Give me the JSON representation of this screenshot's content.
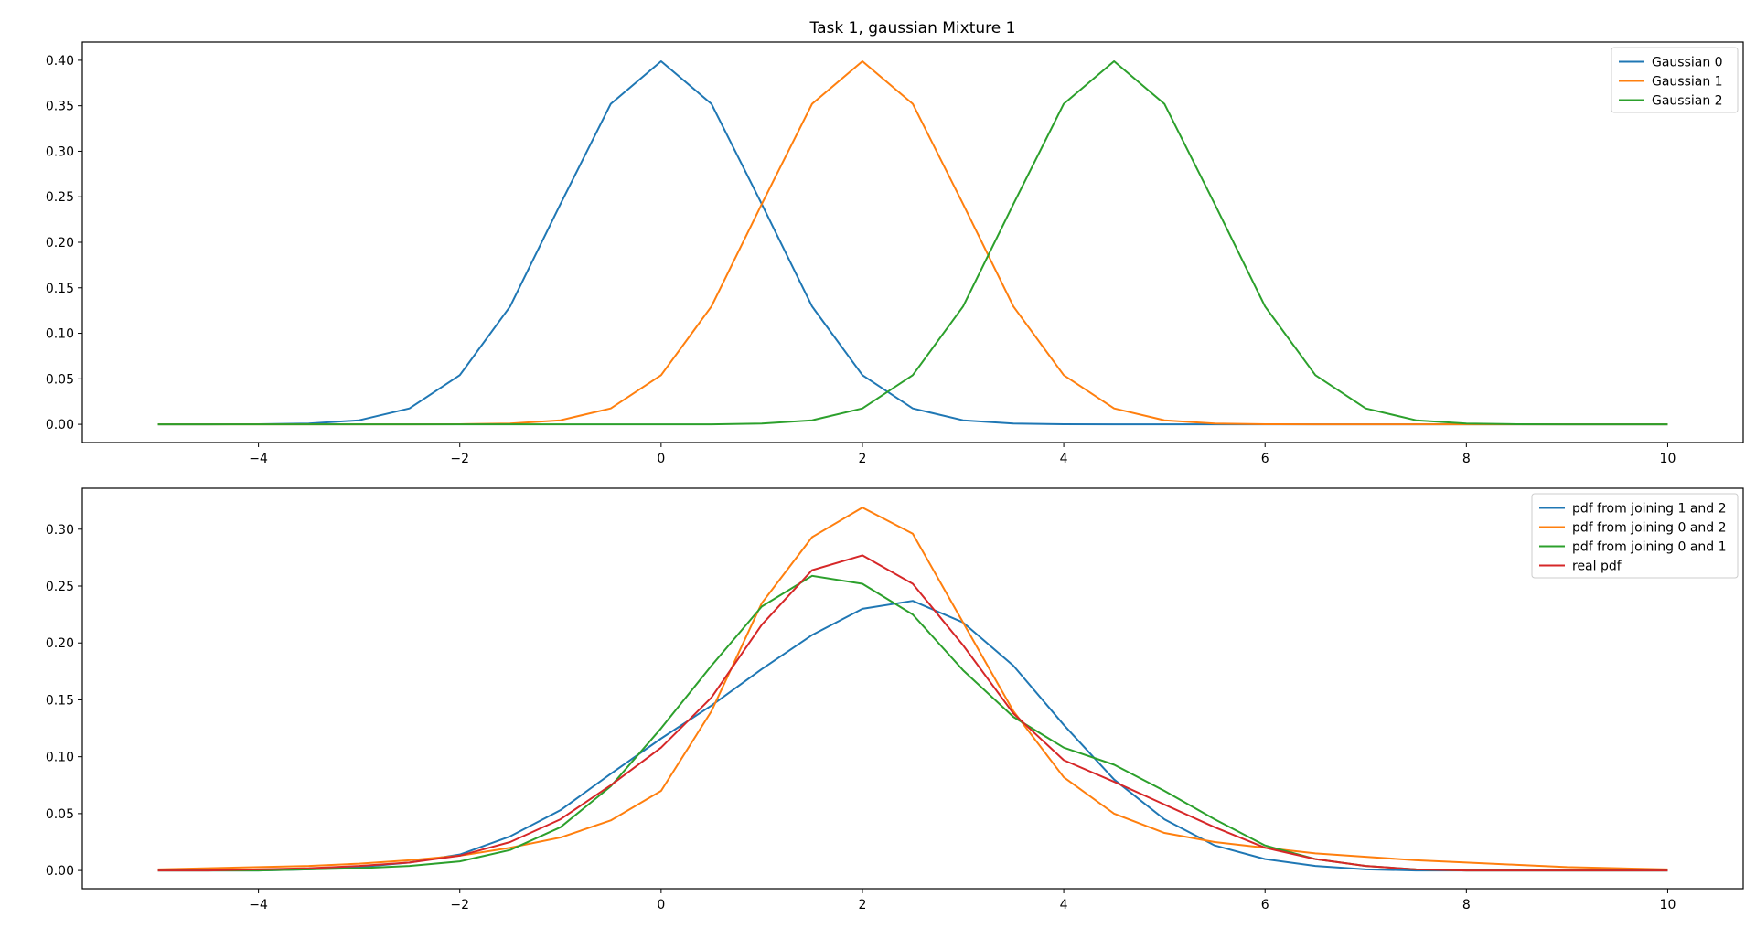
{
  "chart_data": [
    {
      "type": "line",
      "title": "Task 1, gaussian Mixture 1",
      "xlabel": "",
      "ylabel": "",
      "xlim": [
        -5.75,
        10.75
      ],
      "ylim": [
        -0.02,
        0.42
      ],
      "xticks": [
        -4,
        -2,
        0,
        2,
        4,
        6,
        8,
        10
      ],
      "xtick_labels": [
        "−4",
        "−2",
        "0",
        "2",
        "4",
        "6",
        "8",
        "10"
      ],
      "yticks": [
        0.0,
        0.05,
        0.1,
        0.15,
        0.2,
        0.25,
        0.3,
        0.35,
        0.4
      ],
      "ytick_labels": [
        "0.00",
        "0.05",
        "0.10",
        "0.15",
        "0.20",
        "0.25",
        "0.30",
        "0.35",
        "0.40"
      ],
      "grid": false,
      "legend_position": "top-right",
      "x": [
        -5.0,
        -4.5,
        -4.0,
        -3.5,
        -3.0,
        -2.5,
        -2.0,
        -1.5,
        -1.0,
        -0.5,
        0.0,
        0.5,
        1.0,
        1.5,
        2.0,
        2.5,
        3.0,
        3.5,
        4.0,
        4.5,
        5.0,
        5.5,
        6.0,
        6.5,
        7.0,
        7.5,
        8.0,
        8.5,
        9.0,
        9.5,
        10.0
      ],
      "series": [
        {
          "name": "Gaussian 0",
          "color": "#1f77b4",
          "values": [
            0.0,
            0.0,
            0.0001,
            0.0009,
            0.0044,
            0.0175,
            0.054,
            0.1295,
            0.242,
            0.3521,
            0.3989,
            0.3521,
            0.242,
            0.1295,
            0.054,
            0.0175,
            0.0044,
            0.0009,
            0.0001,
            0.0,
            0.0,
            0.0,
            0.0,
            0.0,
            0.0,
            0.0,
            0.0,
            0.0,
            0.0,
            0.0,
            0.0
          ]
        },
        {
          "name": "Gaussian 1",
          "color": "#ff7f0e",
          "values": [
            0.0,
            0.0,
            0.0,
            0.0,
            0.0,
            0.0,
            0.0001,
            0.0009,
            0.0044,
            0.0175,
            0.054,
            0.1295,
            0.242,
            0.3521,
            0.3989,
            0.3521,
            0.242,
            0.1295,
            0.054,
            0.0175,
            0.0044,
            0.0009,
            0.0001,
            0.0,
            0.0,
            0.0,
            0.0,
            0.0,
            0.0,
            0.0,
            0.0
          ]
        },
        {
          "name": "Gaussian 2",
          "color": "#2ca02c",
          "values": [
            0.0,
            0.0,
            0.0,
            0.0,
            0.0,
            0.0,
            0.0,
            0.0,
            0.0,
            0.0,
            0.0,
            0.0,
            0.0009,
            0.0044,
            0.0175,
            0.054,
            0.1295,
            0.242,
            0.3521,
            0.3989,
            0.3521,
            0.242,
            0.1295,
            0.054,
            0.0175,
            0.0044,
            0.0009,
            0.0001,
            0.0,
            0.0,
            0.0
          ]
        }
      ]
    },
    {
      "type": "line",
      "title": "",
      "xlabel": "",
      "ylabel": "",
      "xlim": [
        -5.75,
        10.75
      ],
      "ylim": [
        -0.016,
        0.336
      ],
      "xticks": [
        -4,
        -2,
        0,
        2,
        4,
        6,
        8,
        10
      ],
      "xtick_labels": [
        "−4",
        "−2",
        "0",
        "2",
        "4",
        "6",
        "8",
        "10"
      ],
      "yticks": [
        0.0,
        0.05,
        0.1,
        0.15,
        0.2,
        0.25,
        0.3
      ],
      "ytick_labels": [
        "0.00",
        "0.05",
        "0.10",
        "0.15",
        "0.20",
        "0.25",
        "0.30"
      ],
      "grid": false,
      "legend_position": "top-right",
      "x": [
        -5.0,
        -4.5,
        -4.0,
        -3.5,
        -3.0,
        -2.5,
        -2.0,
        -1.5,
        -1.0,
        -0.5,
        0.0,
        0.5,
        1.0,
        1.5,
        2.0,
        2.5,
        3.0,
        3.5,
        4.0,
        4.5,
        5.0,
        5.5,
        6.0,
        6.5,
        7.0,
        7.5,
        8.0,
        8.5,
        9.0,
        9.5,
        10.0
      ],
      "series": [
        {
          "name": "pdf from joining 1 and 2",
          "color": "#1f77b4",
          "values": [
            0.0,
            0.0,
            0.0,
            0.001,
            0.003,
            0.007,
            0.014,
            0.03,
            0.053,
            0.085,
            0.116,
            0.145,
            0.177,
            0.207,
            0.23,
            0.237,
            0.218,
            0.18,
            0.128,
            0.08,
            0.045,
            0.022,
            0.01,
            0.004,
            0.001,
            0.0,
            0.0,
            0.0,
            0.0,
            0.0,
            0.0
          ]
        },
        {
          "name": "pdf from joining 0 and 2",
          "color": "#ff7f0e",
          "values": [
            0.001,
            0.002,
            0.003,
            0.004,
            0.006,
            0.009,
            0.013,
            0.02,
            0.029,
            0.044,
            0.07,
            0.14,
            0.235,
            0.293,
            0.319,
            0.296,
            0.218,
            0.14,
            0.082,
            0.05,
            0.033,
            0.025,
            0.02,
            0.015,
            0.012,
            0.009,
            0.007,
            0.005,
            0.003,
            0.002,
            0.001
          ]
        },
        {
          "name": "pdf from joining 0 and 1",
          "color": "#2ca02c",
          "values": [
            0.0,
            0.0,
            0.0,
            0.001,
            0.002,
            0.004,
            0.008,
            0.018,
            0.038,
            0.074,
            0.125,
            0.18,
            0.232,
            0.259,
            0.252,
            0.225,
            0.176,
            0.135,
            0.108,
            0.093,
            0.07,
            0.045,
            0.022,
            0.01,
            0.004,
            0.001,
            0.0,
            0.0,
            0.0,
            0.0,
            0.0
          ]
        },
        {
          "name": "real pdf",
          "color": "#d62728",
          "values": [
            0.0,
            0.0,
            0.001,
            0.002,
            0.004,
            0.007,
            0.013,
            0.025,
            0.045,
            0.075,
            0.108,
            0.152,
            0.216,
            0.264,
            0.277,
            0.252,
            0.198,
            0.138,
            0.097,
            0.078,
            0.058,
            0.038,
            0.02,
            0.01,
            0.004,
            0.001,
            0.0,
            0.0,
            0.0,
            0.0,
            0.0
          ]
        }
      ]
    }
  ]
}
